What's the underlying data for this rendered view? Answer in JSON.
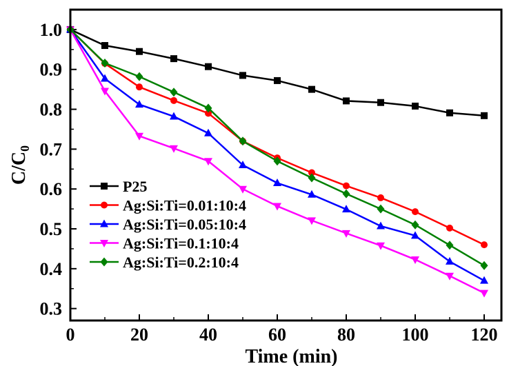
{
  "chart_data": {
    "type": "line",
    "title": "",
    "xlabel": "Time (min)",
    "ylabel_main": "C/C",
    "ylabel_sub": "0",
    "xlim": [
      0,
      125
    ],
    "ylim": [
      0.27,
      1.05
    ],
    "x_ticks": [
      0,
      20,
      40,
      60,
      80,
      100,
      120
    ],
    "x_tick_labels": [
      "0",
      "20",
      "40",
      "60",
      "80",
      "100",
      "120"
    ],
    "y_ticks": [
      0.3,
      0.4,
      0.5,
      0.6,
      0.7,
      0.8,
      0.9,
      1.0
    ],
    "y_tick_labels": [
      "0.3",
      "0.4",
      "0.5",
      "0.6",
      "0.7",
      "0.8",
      "0.9",
      "1.0"
    ],
    "grid": false,
    "legend_position": "bottom-left",
    "x": [
      0,
      10,
      20,
      30,
      40,
      50,
      60,
      70,
      80,
      90,
      100,
      110,
      120
    ],
    "series": [
      {
        "name": "P25",
        "color": "#000000",
        "marker": "square",
        "values": [
          1.0,
          0.96,
          0.945,
          0.927,
          0.907,
          0.885,
          0.872,
          0.85,
          0.821,
          0.817,
          0.808,
          0.791,
          0.784
        ]
      },
      {
        "name": "Ag:Si:Ti=0.01:10:4",
        "color": "#ff0000",
        "marker": "circle",
        "values": [
          1.0,
          0.915,
          0.856,
          0.822,
          0.79,
          0.72,
          0.678,
          0.641,
          0.608,
          0.578,
          0.543,
          0.502,
          0.46
        ]
      },
      {
        "name": "Ag:Si:Ti=0.05:10:4",
        "color": "#0000ff",
        "marker": "triangle-up",
        "values": [
          1.0,
          0.877,
          0.812,
          0.782,
          0.74,
          0.66,
          0.615,
          0.586,
          0.549,
          0.507,
          0.483,
          0.418,
          0.37
        ]
      },
      {
        "name": "Ag:Si:Ti=0.1:10:4",
        "color": "#ff00ff",
        "marker": "triangle-down",
        "values": [
          1.0,
          0.846,
          0.733,
          0.702,
          0.67,
          0.6,
          0.557,
          0.521,
          0.489,
          0.458,
          0.423,
          0.382,
          0.339
        ]
      },
      {
        "name": "Ag:Si:Ti=0.2:10:4",
        "color": "#008000",
        "marker": "diamond",
        "values": [
          1.0,
          0.916,
          0.882,
          0.843,
          0.803,
          0.72,
          0.67,
          0.628,
          0.588,
          0.55,
          0.51,
          0.459,
          0.408
        ]
      }
    ]
  }
}
